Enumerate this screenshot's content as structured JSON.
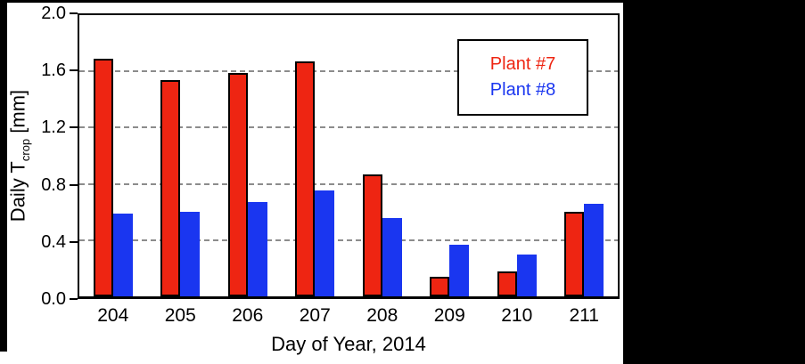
{
  "chart_data": {
    "type": "bar",
    "title": "",
    "xlabel": "Day of Year, 2014",
    "ylabel": "Daily Tcrop [mm]",
    "ylabel_parts": {
      "main": "Daily T",
      "sub": "crop",
      "unit": " [mm]"
    },
    "categories": [
      "204",
      "205",
      "206",
      "207",
      "208",
      "209",
      "210",
      "211"
    ],
    "series": [
      {
        "name": "Plant #7",
        "color": "#ee2512",
        "outline": "#000000",
        "values": [
          1.69,
          1.54,
          1.59,
          1.67,
          0.87,
          0.14,
          0.18,
          0.6
        ]
      },
      {
        "name": "Plant #8",
        "color": "#1a36f0",
        "outline": null,
        "values": [
          0.59,
          0.6,
          0.67,
          0.75,
          0.56,
          0.37,
          0.3,
          0.66
        ]
      }
    ],
    "ylim": [
      0.0,
      2.0
    ],
    "ytick_step": 0.4,
    "yticks": [
      "0.0",
      "0.4",
      "0.8",
      "1.2",
      "1.6",
      "2.0"
    ],
    "grid": "horizontal dashed",
    "legend_position": "upper right"
  },
  "colors": {
    "background": "#000000",
    "panel": "#ffffff",
    "grid": "#8c8c8c",
    "axis": "#000000"
  }
}
